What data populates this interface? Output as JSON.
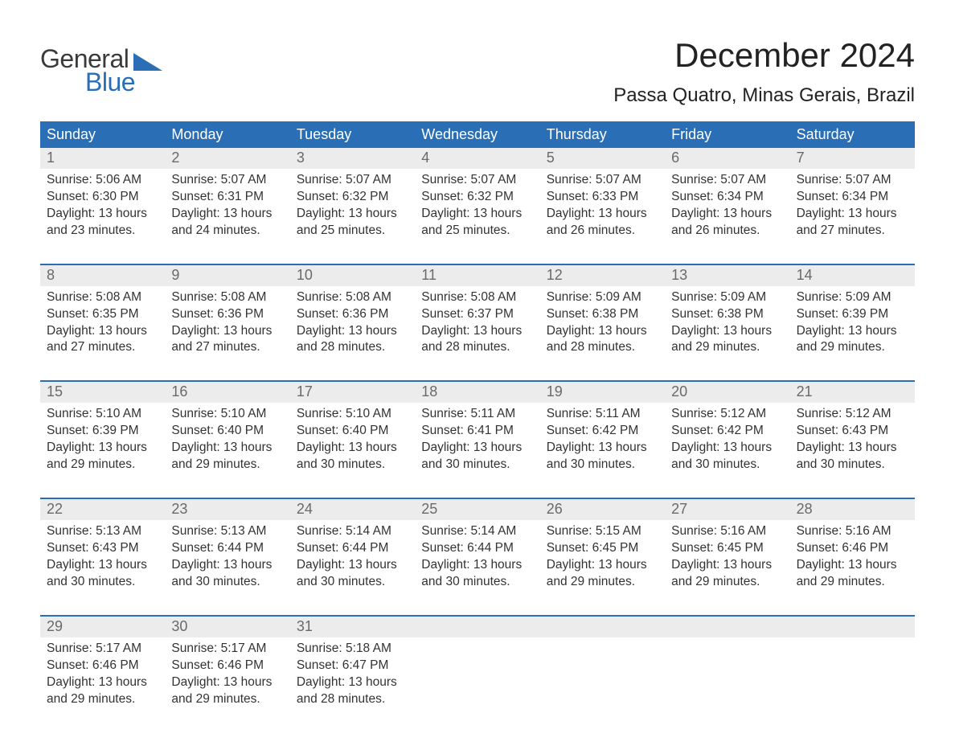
{
  "logo": {
    "word1": "General",
    "word2": "Blue"
  },
  "title": "December 2024",
  "location": "Passa Quatro, Minas Gerais, Brazil",
  "colors": {
    "brand_blue": "#2a6fb5",
    "header_bg": "#2a6fb5",
    "header_text": "#ffffff",
    "daynum_bg": "#ececec",
    "daynum_text": "#6a6a6a",
    "body_text": "#333333",
    "page_bg": "#ffffff",
    "week_divider": "#2a6fb5"
  },
  "typography": {
    "title_fontsize": 42,
    "location_fontsize": 24,
    "dayheader_fontsize": 18,
    "daynum_fontsize": 18,
    "cell_fontsize": 15.5,
    "logo_fontsize": 32
  },
  "day_names": [
    "Sunday",
    "Monday",
    "Tuesday",
    "Wednesday",
    "Thursday",
    "Friday",
    "Saturday"
  ],
  "weeks": [
    {
      "nums": [
        "1",
        "2",
        "3",
        "4",
        "5",
        "6",
        "7"
      ],
      "cells": [
        {
          "sunrise": "Sunrise: 5:06 AM",
          "sunset": "Sunset: 6:30 PM",
          "d1": "Daylight: 13 hours",
          "d2": "and 23 minutes."
        },
        {
          "sunrise": "Sunrise: 5:07 AM",
          "sunset": "Sunset: 6:31 PM",
          "d1": "Daylight: 13 hours",
          "d2": "and 24 minutes."
        },
        {
          "sunrise": "Sunrise: 5:07 AM",
          "sunset": "Sunset: 6:32 PM",
          "d1": "Daylight: 13 hours",
          "d2": "and 25 minutes."
        },
        {
          "sunrise": "Sunrise: 5:07 AM",
          "sunset": "Sunset: 6:32 PM",
          "d1": "Daylight: 13 hours",
          "d2": "and 25 minutes."
        },
        {
          "sunrise": "Sunrise: 5:07 AM",
          "sunset": "Sunset: 6:33 PM",
          "d1": "Daylight: 13 hours",
          "d2": "and 26 minutes."
        },
        {
          "sunrise": "Sunrise: 5:07 AM",
          "sunset": "Sunset: 6:34 PM",
          "d1": "Daylight: 13 hours",
          "d2": "and 26 minutes."
        },
        {
          "sunrise": "Sunrise: 5:07 AM",
          "sunset": "Sunset: 6:34 PM",
          "d1": "Daylight: 13 hours",
          "d2": "and 27 minutes."
        }
      ]
    },
    {
      "nums": [
        "8",
        "9",
        "10",
        "11",
        "12",
        "13",
        "14"
      ],
      "cells": [
        {
          "sunrise": "Sunrise: 5:08 AM",
          "sunset": "Sunset: 6:35 PM",
          "d1": "Daylight: 13 hours",
          "d2": "and 27 minutes."
        },
        {
          "sunrise": "Sunrise: 5:08 AM",
          "sunset": "Sunset: 6:36 PM",
          "d1": "Daylight: 13 hours",
          "d2": "and 27 minutes."
        },
        {
          "sunrise": "Sunrise: 5:08 AM",
          "sunset": "Sunset: 6:36 PM",
          "d1": "Daylight: 13 hours",
          "d2": "and 28 minutes."
        },
        {
          "sunrise": "Sunrise: 5:08 AM",
          "sunset": "Sunset: 6:37 PM",
          "d1": "Daylight: 13 hours",
          "d2": "and 28 minutes."
        },
        {
          "sunrise": "Sunrise: 5:09 AM",
          "sunset": "Sunset: 6:38 PM",
          "d1": "Daylight: 13 hours",
          "d2": "and 28 minutes."
        },
        {
          "sunrise": "Sunrise: 5:09 AM",
          "sunset": "Sunset: 6:38 PM",
          "d1": "Daylight: 13 hours",
          "d2": "and 29 minutes."
        },
        {
          "sunrise": "Sunrise: 5:09 AM",
          "sunset": "Sunset: 6:39 PM",
          "d1": "Daylight: 13 hours",
          "d2": "and 29 minutes."
        }
      ]
    },
    {
      "nums": [
        "15",
        "16",
        "17",
        "18",
        "19",
        "20",
        "21"
      ],
      "cells": [
        {
          "sunrise": "Sunrise: 5:10 AM",
          "sunset": "Sunset: 6:39 PM",
          "d1": "Daylight: 13 hours",
          "d2": "and 29 minutes."
        },
        {
          "sunrise": "Sunrise: 5:10 AM",
          "sunset": "Sunset: 6:40 PM",
          "d1": "Daylight: 13 hours",
          "d2": "and 29 minutes."
        },
        {
          "sunrise": "Sunrise: 5:10 AM",
          "sunset": "Sunset: 6:40 PM",
          "d1": "Daylight: 13 hours",
          "d2": "and 30 minutes."
        },
        {
          "sunrise": "Sunrise: 5:11 AM",
          "sunset": "Sunset: 6:41 PM",
          "d1": "Daylight: 13 hours",
          "d2": "and 30 minutes."
        },
        {
          "sunrise": "Sunrise: 5:11 AM",
          "sunset": "Sunset: 6:42 PM",
          "d1": "Daylight: 13 hours",
          "d2": "and 30 minutes."
        },
        {
          "sunrise": "Sunrise: 5:12 AM",
          "sunset": "Sunset: 6:42 PM",
          "d1": "Daylight: 13 hours",
          "d2": "and 30 minutes."
        },
        {
          "sunrise": "Sunrise: 5:12 AM",
          "sunset": "Sunset: 6:43 PM",
          "d1": "Daylight: 13 hours",
          "d2": "and 30 minutes."
        }
      ]
    },
    {
      "nums": [
        "22",
        "23",
        "24",
        "25",
        "26",
        "27",
        "28"
      ],
      "cells": [
        {
          "sunrise": "Sunrise: 5:13 AM",
          "sunset": "Sunset: 6:43 PM",
          "d1": "Daylight: 13 hours",
          "d2": "and 30 minutes."
        },
        {
          "sunrise": "Sunrise: 5:13 AM",
          "sunset": "Sunset: 6:44 PM",
          "d1": "Daylight: 13 hours",
          "d2": "and 30 minutes."
        },
        {
          "sunrise": "Sunrise: 5:14 AM",
          "sunset": "Sunset: 6:44 PM",
          "d1": "Daylight: 13 hours",
          "d2": "and 30 minutes."
        },
        {
          "sunrise": "Sunrise: 5:14 AM",
          "sunset": "Sunset: 6:44 PM",
          "d1": "Daylight: 13 hours",
          "d2": "and 30 minutes."
        },
        {
          "sunrise": "Sunrise: 5:15 AM",
          "sunset": "Sunset: 6:45 PM",
          "d1": "Daylight: 13 hours",
          "d2": "and 29 minutes."
        },
        {
          "sunrise": "Sunrise: 5:16 AM",
          "sunset": "Sunset: 6:45 PM",
          "d1": "Daylight: 13 hours",
          "d2": "and 29 minutes."
        },
        {
          "sunrise": "Sunrise: 5:16 AM",
          "sunset": "Sunset: 6:46 PM",
          "d1": "Daylight: 13 hours",
          "d2": "and 29 minutes."
        }
      ]
    },
    {
      "nums": [
        "29",
        "30",
        "31",
        "",
        "",
        "",
        ""
      ],
      "cells": [
        {
          "sunrise": "Sunrise: 5:17 AM",
          "sunset": "Sunset: 6:46 PM",
          "d1": "Daylight: 13 hours",
          "d2": "and 29 minutes."
        },
        {
          "sunrise": "Sunrise: 5:17 AM",
          "sunset": "Sunset: 6:46 PM",
          "d1": "Daylight: 13 hours",
          "d2": "and 29 minutes."
        },
        {
          "sunrise": "Sunrise: 5:18 AM",
          "sunset": "Sunset: 6:47 PM",
          "d1": "Daylight: 13 hours",
          "d2": "and 28 minutes."
        },
        {
          "sunrise": "",
          "sunset": "",
          "d1": "",
          "d2": ""
        },
        {
          "sunrise": "",
          "sunset": "",
          "d1": "",
          "d2": ""
        },
        {
          "sunrise": "",
          "sunset": "",
          "d1": "",
          "d2": ""
        },
        {
          "sunrise": "",
          "sunset": "",
          "d1": "",
          "d2": ""
        }
      ]
    }
  ]
}
